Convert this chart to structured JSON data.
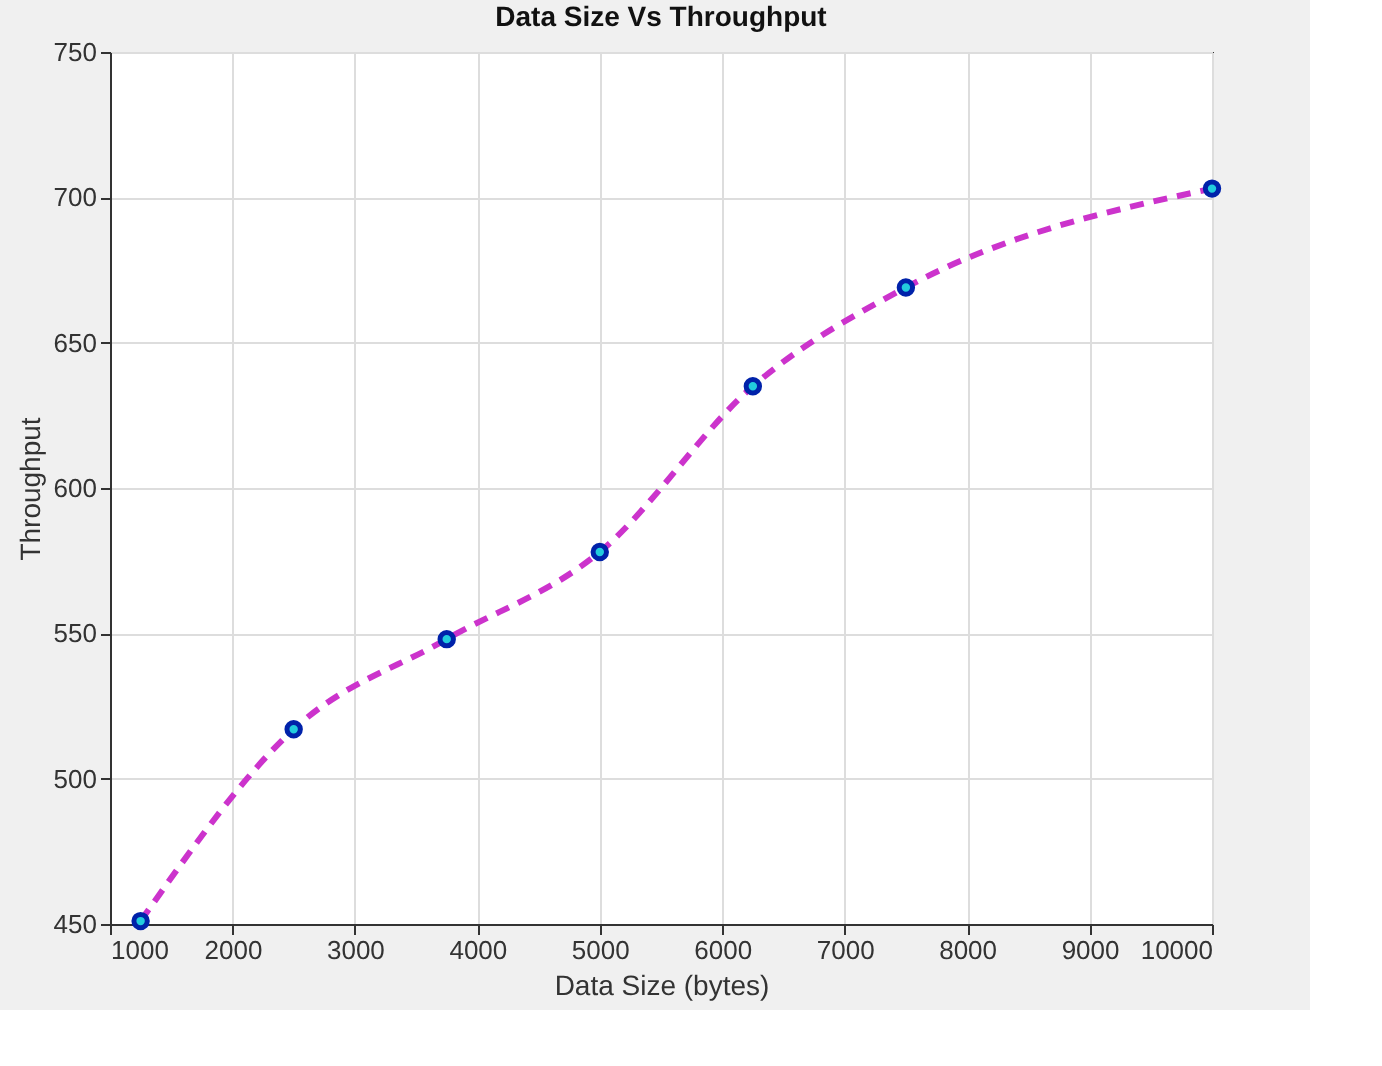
{
  "chart_data": {
    "type": "line",
    "title": "Data Size Vs  Throughput",
    "xlabel": "Data Size (bytes)",
    "ylabel": "Throughput",
    "x": [
      1250,
      2500,
      3750,
      5000,
      6250,
      7500,
      10000
    ],
    "series": [
      {
        "color": "#cc33cc",
        "values": [
          451,
          517,
          548,
          578,
          635,
          669,
          703
        ]
      }
    ],
    "xlim": [
      1000,
      10000
    ],
    "xticks": [
      1000,
      2000,
      3000,
      4000,
      5000,
      6000,
      7000,
      8000,
      9000,
      10000
    ],
    "ylim": [
      450,
      750
    ],
    "yticks": [
      450,
      500,
      550,
      600,
      650,
      700,
      750
    ],
    "grid": true,
    "marker": "circle",
    "line_style": "dashed"
  }
}
